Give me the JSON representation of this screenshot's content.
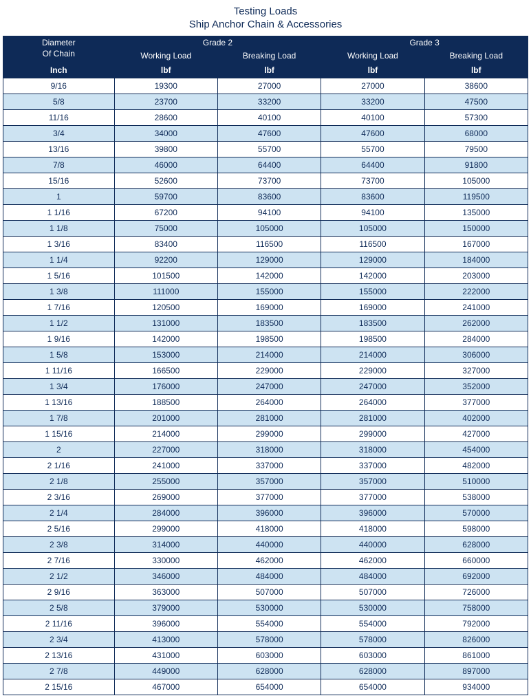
{
  "title_line1": "Testing Loads",
  "title_line2": "Ship Anchor Chain & Accessories",
  "headers": {
    "diameter_label_line1": "Diameter",
    "diameter_label_line2": "Of Chain",
    "grade2": "Grade 2",
    "grade3": "Grade 3",
    "working_load": "Working Load",
    "breaking_load": "Breaking Load",
    "unit_diameter": "Inch",
    "unit_load": "lbf"
  },
  "table": {
    "type": "table",
    "columns": [
      "Diameter (Inch)",
      "Grade 2 Working Load (lbf)",
      "Grade 2 Breaking Load (lbf)",
      "Grade 3 Working Load (lbf)",
      "Grade 3 Breaking Load (lbf)"
    ],
    "row_colors": {
      "even": "#cde3f2",
      "odd": "#ffffff"
    },
    "header_bg": "#0e2a57",
    "header_fg": "#ffffff",
    "border_color": "#0e2a57",
    "text_color": "#0e2a57",
    "font_size_pt": 9,
    "rows": [
      [
        "9/16",
        "19300",
        "27000",
        "27000",
        "38600"
      ],
      [
        "5/8",
        "23700",
        "33200",
        "33200",
        "47500"
      ],
      [
        "11/16",
        "28600",
        "40100",
        "40100",
        "57300"
      ],
      [
        "3/4",
        "34000",
        "47600",
        "47600",
        "68000"
      ],
      [
        "13/16",
        "39800",
        "55700",
        "55700",
        "79500"
      ],
      [
        "7/8",
        "46000",
        "64400",
        "64400",
        "91800"
      ],
      [
        "15/16",
        "52600",
        "73700",
        "73700",
        "105000"
      ],
      [
        "1",
        "59700",
        "83600",
        "83600",
        "119500"
      ],
      [
        "1  1/16",
        "67200",
        "94100",
        "94100",
        "135000"
      ],
      [
        "1  1/8",
        "75000",
        "105000",
        "105000",
        "150000"
      ],
      [
        "1  3/16",
        "83400",
        "116500",
        "116500",
        "167000"
      ],
      [
        "1  1/4",
        "92200",
        "129000",
        "129000",
        "184000"
      ],
      [
        "1  5/16",
        "101500",
        "142000",
        "142000",
        "203000"
      ],
      [
        "1  3/8",
        "111000",
        "155000",
        "155000",
        "222000"
      ],
      [
        "1  7/16",
        "120500",
        "169000",
        "169000",
        "241000"
      ],
      [
        "1  1/2",
        "131000",
        "183500",
        "183500",
        "262000"
      ],
      [
        "1  9/16",
        "142000",
        "198500",
        "198500",
        "284000"
      ],
      [
        "1  5/8",
        "153000",
        "214000",
        "214000",
        "306000"
      ],
      [
        "1 11/16",
        "166500",
        "229000",
        "229000",
        "327000"
      ],
      [
        "1  3/4",
        "176000",
        "247000",
        "247000",
        "352000"
      ],
      [
        "1 13/16",
        "188500",
        "264000",
        "264000",
        "377000"
      ],
      [
        "1  7/8",
        "201000",
        "281000",
        "281000",
        "402000"
      ],
      [
        "1 15/16",
        "214000",
        "299000",
        "299000",
        "427000"
      ],
      [
        "2",
        "227000",
        "318000",
        "318000",
        "454000"
      ],
      [
        "2  1/16",
        "241000",
        "337000",
        "337000",
        "482000"
      ],
      [
        "2  1/8",
        "255000",
        "357000",
        "357000",
        "510000"
      ],
      [
        "2  3/16",
        "269000",
        "377000",
        "377000",
        "538000"
      ],
      [
        "2  1/4",
        "284000",
        "396000",
        "396000",
        "570000"
      ],
      [
        "2  5/16",
        "299000",
        "418000",
        "418000",
        "598000"
      ],
      [
        "2  3/8",
        "314000",
        "440000",
        "440000",
        "628000"
      ],
      [
        "2  7/16",
        "330000",
        "462000",
        "462000",
        "660000"
      ],
      [
        "2  1/2",
        "346000",
        "484000",
        "484000",
        "692000"
      ],
      [
        "2  9/16",
        "363000",
        "507000",
        "507000",
        "726000"
      ],
      [
        "2  5/8",
        "379000",
        "530000",
        "530000",
        "758000"
      ],
      [
        "2 11/16",
        "396000",
        "554000",
        "554000",
        "792000"
      ],
      [
        "2  3/4",
        "413000",
        "578000",
        "578000",
        "826000"
      ],
      [
        "2 13/16",
        "431000",
        "603000",
        "603000",
        "861000"
      ],
      [
        "2  7/8",
        "449000",
        "628000",
        "628000",
        "897000"
      ],
      [
        "2 15/16",
        "467000",
        "654000",
        "654000",
        "934000"
      ]
    ]
  }
}
